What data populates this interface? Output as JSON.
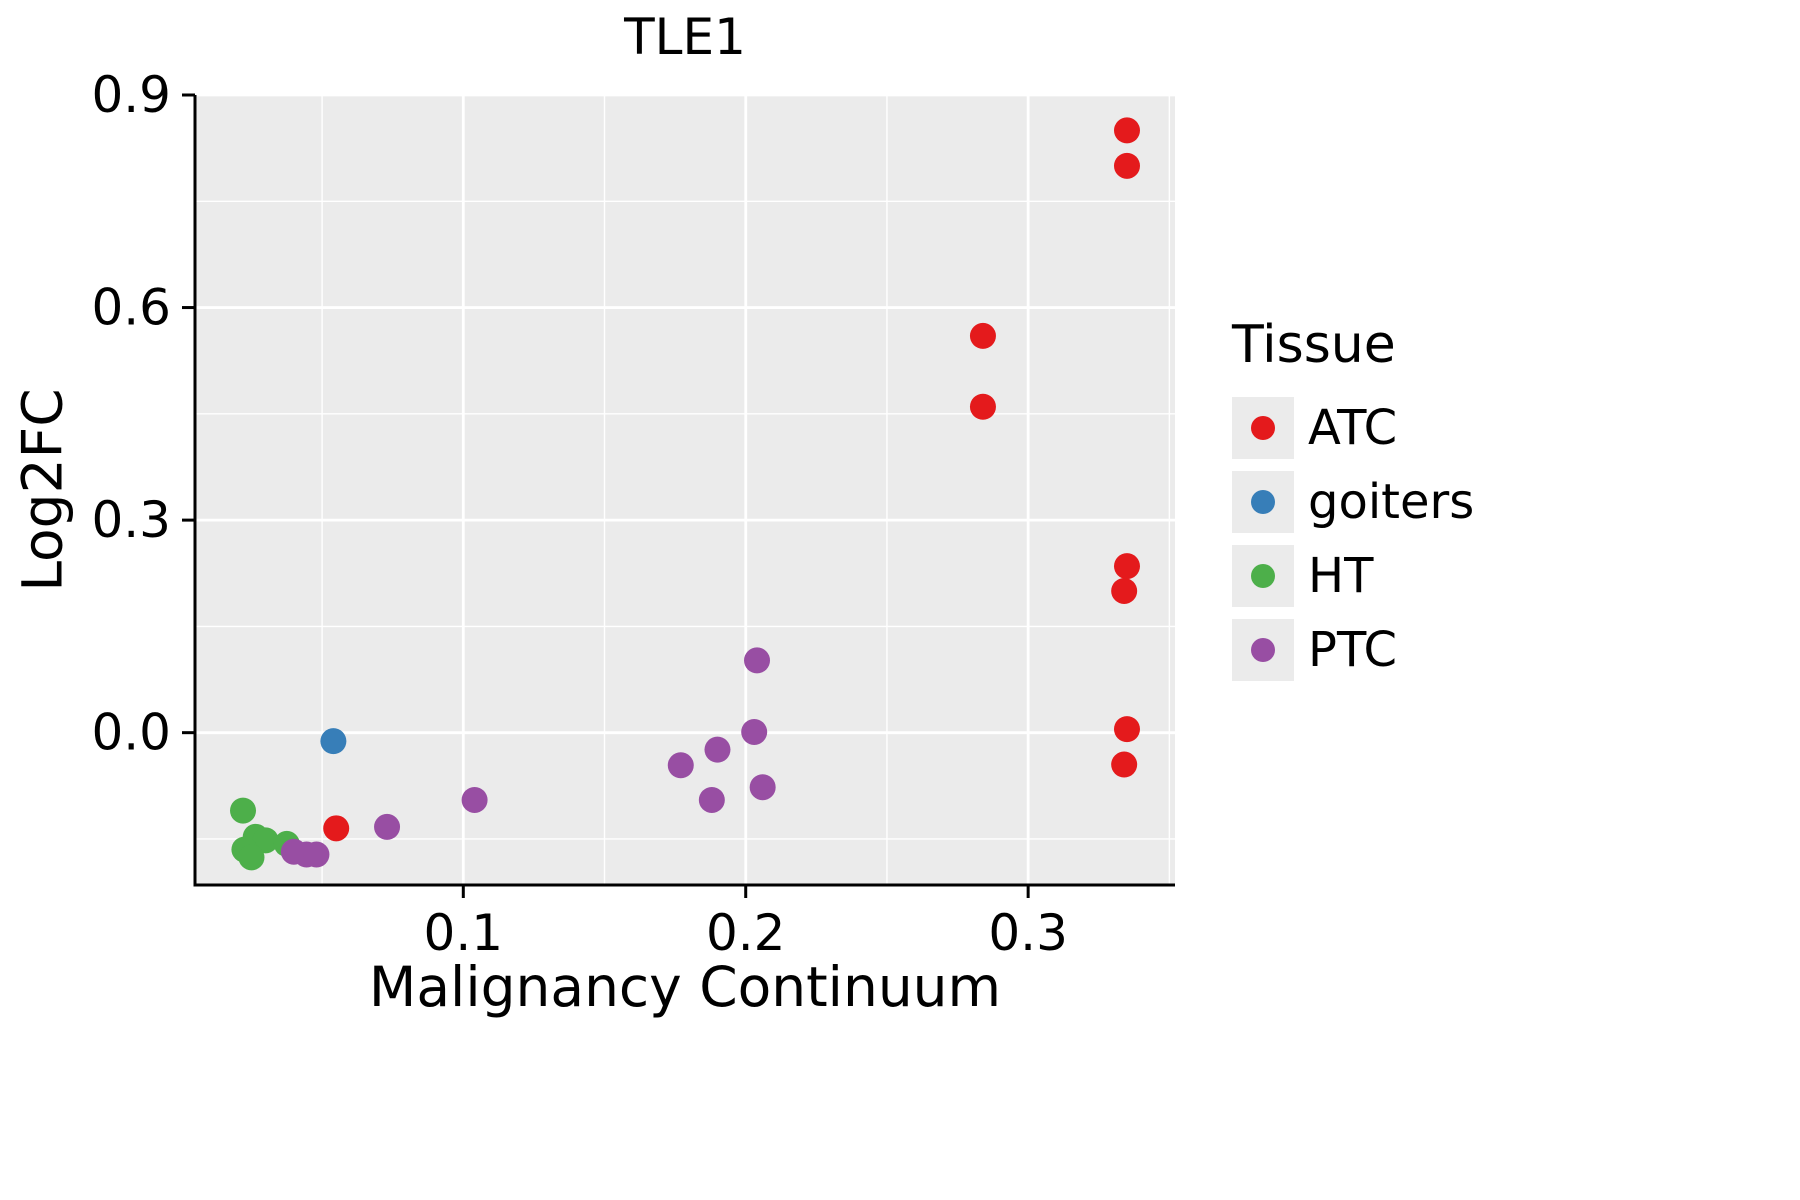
{
  "chart_data": {
    "type": "scatter",
    "title": "TLE1",
    "xlabel": "Malignancy Continuum",
    "ylabel": "Log2FC",
    "xlim": [
      0.005,
      0.352
    ],
    "ylim": [
      -0.215,
      0.9
    ],
    "x_ticks": {
      "values": [
        0.1,
        0.2,
        0.3
      ],
      "labels": [
        "0.1",
        "0.2",
        "0.3"
      ]
    },
    "y_ticks": {
      "values": [
        0.0,
        0.3,
        0.6,
        0.9
      ],
      "labels": [
        "0.0",
        "0.3",
        "0.6",
        "0.9"
      ]
    },
    "x_minor_ticks": [
      0.05,
      0.15,
      0.25,
      0.35
    ],
    "y_minor_ticks": [
      -0.15,
      0.15,
      0.45,
      0.75
    ],
    "grid": true,
    "panel_background": "#EBEBEB",
    "grid_color": "#FFFFFF",
    "axis_color": "#000000",
    "legend_title": "Tissue",
    "legend_position": "right",
    "point_radius": 13,
    "series": [
      {
        "name": "ATC",
        "color": "#E41A1C",
        "points": [
          [
            0.335,
            0.85
          ],
          [
            0.335,
            0.8
          ],
          [
            0.284,
            0.56
          ],
          [
            0.284,
            0.46
          ],
          [
            0.335,
            0.235
          ],
          [
            0.334,
            0.2
          ],
          [
            0.335,
            0.005
          ],
          [
            0.334,
            -0.045
          ],
          [
            0.055,
            -0.135
          ]
        ]
      },
      {
        "name": "goiters",
        "color": "#377EB8",
        "points": [
          [
            0.054,
            -0.012
          ]
        ]
      },
      {
        "name": "HT",
        "color": "#4DAF4A",
        "points": [
          [
            0.022,
            -0.11
          ],
          [
            0.0265,
            -0.147
          ],
          [
            0.03,
            -0.152
          ],
          [
            0.0225,
            -0.165
          ],
          [
            0.025,
            -0.176
          ],
          [
            0.0375,
            -0.157
          ]
        ]
      },
      {
        "name": "PTC",
        "color": "#984EA3",
        "points": [
          [
            0.04,
            -0.168
          ],
          [
            0.0445,
            -0.172
          ],
          [
            0.048,
            -0.172
          ],
          [
            0.073,
            -0.133
          ],
          [
            0.104,
            -0.095
          ],
          [
            0.177,
            -0.046
          ],
          [
            0.19,
            -0.024
          ],
          [
            0.188,
            -0.095
          ],
          [
            0.203,
            0.001
          ],
          [
            0.204,
            0.102
          ],
          [
            0.206,
            -0.077
          ]
        ]
      }
    ]
  }
}
